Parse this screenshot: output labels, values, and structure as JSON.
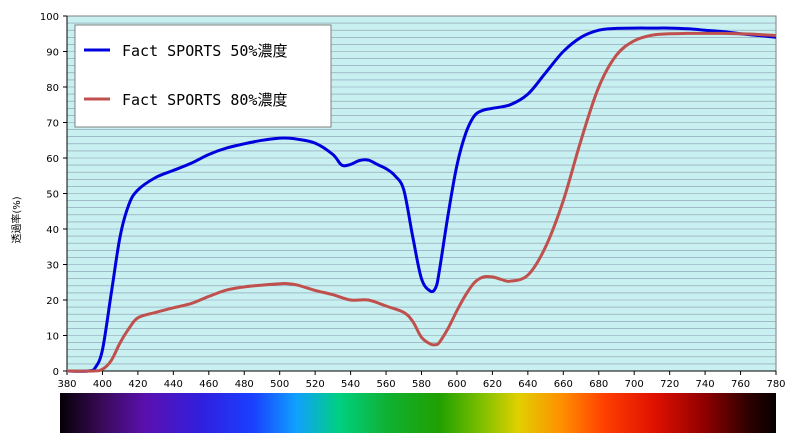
{
  "chart_data": {
    "type": "line",
    "title": "",
    "xlabel": "",
    "ylabel": "透過率(%)",
    "xlim": [
      380,
      780
    ],
    "ylim": [
      0,
      100
    ],
    "x_ticks": [
      380,
      400,
      420,
      440,
      460,
      480,
      500,
      520,
      540,
      560,
      580,
      600,
      620,
      640,
      660,
      680,
      700,
      720,
      740,
      760,
      780
    ],
    "y_ticks": [
      0,
      10,
      20,
      30,
      40,
      50,
      60,
      70,
      80,
      90,
      100
    ],
    "grid": true,
    "legend_position": "top-left",
    "plot_background": "#c8f0f0",
    "spectrum_bar": true,
    "series": [
      {
        "name": "Fact SPORTS 50%濃度",
        "color": "#0000dd",
        "x": [
          380,
          392,
          396,
          400,
          405,
          410,
          415,
          420,
          430,
          440,
          450,
          460,
          470,
          480,
          490,
          500,
          505,
          510,
          520,
          530,
          535,
          540,
          545,
          550,
          555,
          560,
          565,
          570,
          575,
          580,
          585,
          588,
          590,
          595,
          600,
          605,
          610,
          615,
          620,
          630,
          640,
          650,
          660,
          670,
          680,
          690,
          700,
          710,
          720,
          730,
          740,
          750,
          760,
          770,
          780
        ],
        "y": [
          0,
          0,
          1,
          6,
          22,
          38,
          47,
          51,
          54.5,
          56.5,
          58.5,
          61,
          62.8,
          64,
          65,
          65.6,
          65.6,
          65.3,
          64.2,
          61,
          58,
          58.2,
          59.3,
          59.4,
          58.2,
          57,
          55,
          51,
          38,
          26,
          22.5,
          23.5,
          28,
          44,
          58,
          67,
          72,
          73.5,
          74,
          75,
          78,
          84,
          90,
          94,
          96,
          96.5,
          96.6,
          96.6,
          96.6,
          96.4,
          96,
          95.6,
          95,
          94.5,
          94
        ]
      },
      {
        "name": "Fact SPORTS 80%濃度",
        "color": "#c0504d",
        "x": [
          380,
          395,
          400,
          405,
          410,
          415,
          420,
          430,
          440,
          450,
          460,
          470,
          480,
          490,
          500,
          505,
          510,
          520,
          530,
          540,
          550,
          560,
          570,
          575,
          580,
          585,
          588,
          590,
          595,
          600,
          605,
          610,
          615,
          620,
          625,
          630,
          640,
          650,
          660,
          670,
          680,
          690,
          700,
          710,
          720,
          730,
          740,
          750,
          760,
          770,
          780
        ],
        "y": [
          0,
          0,
          0.5,
          3,
          8,
          12,
          15,
          16.5,
          17.8,
          19,
          21,
          22.8,
          23.7,
          24.2,
          24.6,
          24.6,
          24.2,
          22.7,
          21.5,
          20,
          20,
          18.3,
          16.5,
          14,
          9.5,
          7.6,
          7.4,
          8,
          12,
          17,
          21.5,
          25,
          26.5,
          26.5,
          25.8,
          25.3,
          27,
          35,
          48,
          65,
          80,
          89,
          93,
          94.6,
          95,
          95.1,
          95.1,
          95.1,
          95,
          94.8,
          94.5
        ]
      }
    ]
  }
}
